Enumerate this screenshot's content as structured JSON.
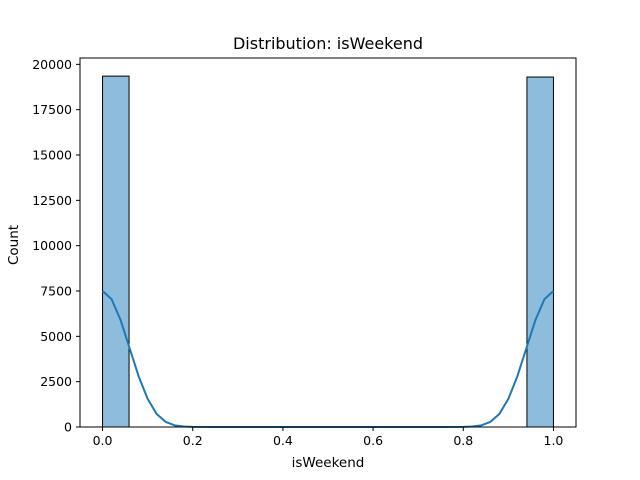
{
  "chart_data": {
    "type": "bar",
    "title": "Distribution: isWeekend",
    "xlabel": "isWeekend",
    "ylabel": "Count",
    "xlim": [
      -0.05,
      1.05
    ],
    "ylim": [
      0,
      20350
    ],
    "xticks": [
      0.0,
      0.2,
      0.4,
      0.6,
      0.8,
      1.0
    ],
    "xtick_labels": [
      "0.0",
      "0.2",
      "0.4",
      "0.6",
      "0.8",
      "1.0"
    ],
    "yticks": [
      0,
      2500,
      5000,
      7500,
      10000,
      12500,
      15000,
      17500,
      20000
    ],
    "ytick_labels": [
      "0",
      "2500",
      "5000",
      "7500",
      "10000",
      "12500",
      "15000",
      "17500",
      "20000"
    ],
    "bins": [
      {
        "x0": 0.0,
        "x1": 0.0588,
        "count": 19350
      },
      {
        "x0": 0.9412,
        "x1": 1.0,
        "count": 19300
      }
    ],
    "kde": [
      [
        0.0,
        7500
      ],
      [
        0.02,
        7050
      ],
      [
        0.04,
        5900
      ],
      [
        0.06,
        4350
      ],
      [
        0.08,
        2800
      ],
      [
        0.1,
        1550
      ],
      [
        0.12,
        720
      ],
      [
        0.14,
        280
      ],
      [
        0.16,
        90
      ],
      [
        0.18,
        25
      ],
      [
        0.2,
        5
      ],
      [
        0.25,
        0
      ],
      [
        0.75,
        0
      ],
      [
        0.8,
        5
      ],
      [
        0.82,
        25
      ],
      [
        0.84,
        90
      ],
      [
        0.86,
        280
      ],
      [
        0.88,
        720
      ],
      [
        0.9,
        1550
      ],
      [
        0.92,
        2800
      ],
      [
        0.94,
        4350
      ],
      [
        0.96,
        5900
      ],
      [
        0.98,
        7050
      ],
      [
        1.0,
        7500
      ]
    ],
    "grid": false,
    "colors": {
      "bar_fill": "#8ebcdc",
      "bar_edge": "#000000",
      "kde_line": "#1f77b4"
    }
  }
}
